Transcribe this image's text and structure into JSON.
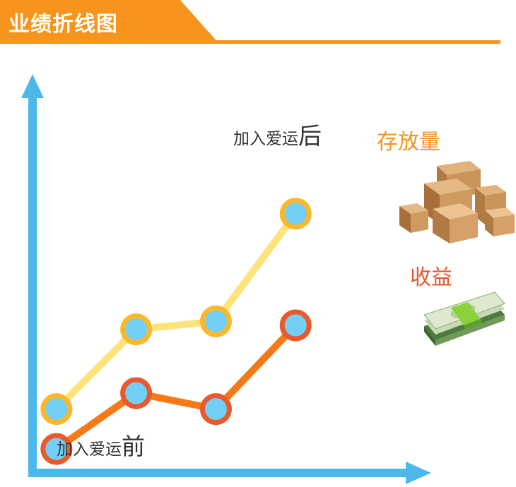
{
  "header": {
    "title": "业绩折线图"
  },
  "annotations": {
    "after_small": "加入爱运",
    "after_big": "后",
    "before_small": "加入爱运",
    "before_big": "前"
  },
  "chart_data": {
    "type": "line",
    "title": "业绩折线图",
    "x": [
      1,
      2,
      3,
      4
    ],
    "xlim": [
      0.7,
      5.7
    ],
    "ylim": [
      0,
      10
    ],
    "grid": false,
    "series": [
      {
        "name": "存放量",
        "values": [
          1.6,
          3.6,
          3.8,
          6.5
        ],
        "color": "#fde37a",
        "marker_ring": "#fbb82b"
      },
      {
        "name": "收益",
        "values": [
          0.6,
          2.0,
          1.6,
          3.7
        ],
        "color": "#f57a17",
        "marker_ring": "#e85a2b"
      }
    ],
    "axis_color": "#4cb8ea",
    "marker_fill": "#74cff6",
    "icons": [
      "cardboard-boxes-icon",
      "cash-stack-icon"
    ]
  }
}
